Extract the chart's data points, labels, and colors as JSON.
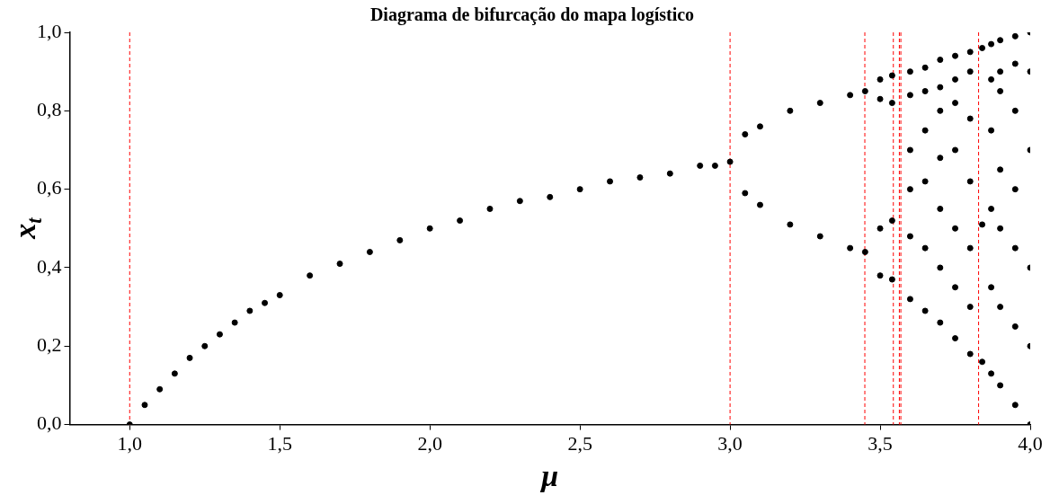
{
  "chart_data": {
    "type": "scatter",
    "title": "Diagrama de bifurcação do mapa logístico",
    "xlabel": "μ",
    "ylabel": "x$_{t}$",
    "xlim": [
      0.8,
      4.0
    ],
    "ylim": [
      0,
      1
    ],
    "xticks": [
      {
        "value": 1.0,
        "label": "1,0"
      },
      {
        "value": 1.5,
        "label": "1,5"
      },
      {
        "value": 2.0,
        "label": "2,0"
      },
      {
        "value": 2.5,
        "label": "2,5"
      },
      {
        "value": 3.0,
        "label": "3,0"
      },
      {
        "value": 3.5,
        "label": "3,5"
      },
      {
        "value": 4.0,
        "label": "4,0"
      }
    ],
    "yticks": [
      {
        "value": 0,
        "label": "0,0"
      },
      {
        "value": 0.2,
        "label": "0,2"
      },
      {
        "value": 0.4,
        "label": "0,4"
      },
      {
        "value": 0.6,
        "label": "0,6"
      },
      {
        "value": 0.8,
        "label": "0,8"
      },
      {
        "value": 1.0,
        "label": "1,0"
      }
    ],
    "grid": false,
    "legend": false,
    "marker": "circle",
    "series": [
      {
        "color": "#000000",
        "x": [
          1.0,
          1.05,
          1.1,
          1.15,
          1.2,
          1.25,
          1.3,
          1.35,
          1.4,
          1.45,
          1.5,
          1.6,
          1.7,
          1.8,
          1.9,
          2.0,
          2.1,
          2.2,
          2.3,
          2.4,
          2.5,
          2.6,
          2.7,
          2.8,
          2.9,
          2.95,
          3.0,
          3.05,
          3.05,
          3.1,
          3.1,
          3.2,
          3.2,
          3.3,
          3.3,
          3.4,
          3.4,
          3.45,
          3.45,
          3.5,
          3.5,
          3.5,
          3.5,
          3.54,
          3.54,
          3.54,
          3.54,
          3.6,
          3.6,
          3.6,
          3.6,
          3.6,
          3.6,
          3.65,
          3.65,
          3.65,
          3.65,
          3.65,
          3.65,
          3.7,
          3.7,
          3.7,
          3.7,
          3.7,
          3.7,
          3.7,
          3.75,
          3.75,
          3.75,
          3.75,
          3.75,
          3.75,
          3.75,
          3.8,
          3.8,
          3.8,
          3.8,
          3.8,
          3.8,
          3.8,
          3.84,
          3.84,
          3.84,
          3.87,
          3.87,
          3.87,
          3.87,
          3.87,
          3.87,
          3.9,
          3.9,
          3.9,
          3.9,
          3.9,
          3.9,
          3.9,
          3.95,
          3.95,
          3.95,
          3.95,
          3.95,
          3.95,
          3.95,
          4.0,
          4.0,
          4.0,
          4.0,
          4.0,
          4.0
        ],
        "values": [
          0.0,
          0.05,
          0.09,
          0.13,
          0.17,
          0.2,
          0.23,
          0.26,
          0.29,
          0.31,
          0.33,
          0.38,
          0.41,
          0.44,
          0.47,
          0.5,
          0.52,
          0.55,
          0.57,
          0.58,
          0.6,
          0.62,
          0.63,
          0.64,
          0.66,
          0.66,
          0.67,
          0.74,
          0.59,
          0.76,
          0.56,
          0.8,
          0.51,
          0.82,
          0.48,
          0.84,
          0.45,
          0.85,
          0.44,
          0.88,
          0.38,
          0.83,
          0.5,
          0.89,
          0.37,
          0.82,
          0.52,
          0.9,
          0.32,
          0.84,
          0.48,
          0.6,
          0.7,
          0.91,
          0.29,
          0.85,
          0.45,
          0.62,
          0.75,
          0.93,
          0.26,
          0.86,
          0.4,
          0.55,
          0.68,
          0.8,
          0.94,
          0.22,
          0.88,
          0.35,
          0.5,
          0.7,
          0.82,
          0.95,
          0.18,
          0.9,
          0.3,
          0.45,
          0.62,
          0.78,
          0.96,
          0.16,
          0.51,
          0.97,
          0.13,
          0.88,
          0.35,
          0.55,
          0.75,
          0.98,
          0.1,
          0.85,
          0.3,
          0.5,
          0.65,
          0.9,
          0.99,
          0.05,
          0.8,
          0.25,
          0.45,
          0.6,
          0.92,
          1.0,
          0.0,
          0.2,
          0.4,
          0.7,
          0.9
        ]
      }
    ],
    "ref_lines": [
      {
        "axis": "x",
        "value": 1.0,
        "color": "#ff0000",
        "line_style": "dashed"
      },
      {
        "axis": "x",
        "value": 3.0,
        "color": "#ff0000",
        "line_style": "dashed"
      },
      {
        "axis": "x",
        "value": 3.449,
        "color": "#ff0000",
        "line_style": "dashed"
      },
      {
        "axis": "x",
        "value": 3.544,
        "color": "#ff0000",
        "line_style": "dashed"
      },
      {
        "axis": "x",
        "value": 3.564,
        "color": "#ff0000",
        "line_style": "dashed"
      },
      {
        "axis": "x",
        "value": 3.569,
        "color": "#ff0000",
        "line_style": "dashed"
      },
      {
        "axis": "x",
        "value": 3.828,
        "color": "#ff0000",
        "line_style": "dashed"
      }
    ]
  }
}
